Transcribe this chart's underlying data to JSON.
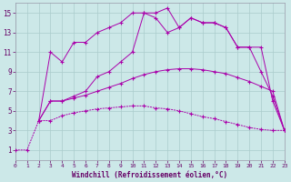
{
  "bg_color": "#cce8e8",
  "grid_color": "#aacccc",
  "line_color": "#aa00aa",
  "xlim": [
    0,
    23
  ],
  "ylim": [
    0,
    16
  ],
  "xticks": [
    0,
    1,
    2,
    3,
    4,
    5,
    6,
    7,
    8,
    9,
    10,
    11,
    12,
    13,
    14,
    15,
    16,
    17,
    18,
    19,
    20,
    21,
    22,
    23
  ],
  "yticks": [
    1,
    3,
    5,
    7,
    9,
    11,
    13,
    15
  ],
  "xlabel": "Windchill (Refroidissement éolien,°C)",
  "curve1_x": [
    0,
    1,
    2,
    3,
    4,
    5,
    6,
    7,
    8,
    9,
    10,
    11,
    12,
    13,
    14,
    15,
    16,
    17,
    18,
    19,
    20,
    21,
    22,
    23
  ],
  "curve1_y": [
    1,
    1,
    4,
    4,
    4.5,
    4.8,
    5.0,
    5.2,
    5.3,
    5.4,
    5.5,
    5.5,
    5.3,
    5.2,
    5.0,
    4.7,
    4.4,
    4.2,
    3.9,
    3.6,
    3.3,
    3.1,
    3.0,
    3.0
  ],
  "curve2_x": [
    2,
    3,
    4,
    5,
    6,
    7,
    8,
    9,
    10,
    11,
    12,
    13,
    14,
    15,
    16,
    17,
    18,
    19,
    20,
    21,
    22,
    23
  ],
  "curve2_y": [
    4,
    6,
    6,
    6.3,
    6.6,
    7.0,
    7.4,
    7.8,
    8.3,
    8.7,
    9.0,
    9.2,
    9.3,
    9.3,
    9.2,
    9.0,
    8.8,
    8.4,
    8.0,
    7.5,
    7.0,
    3.0
  ],
  "curve3_x": [
    2,
    3,
    4,
    5,
    6,
    7,
    8,
    9,
    10,
    11,
    12,
    13,
    14,
    15,
    16,
    17,
    18,
    19,
    20,
    21,
    22,
    23
  ],
  "curve3_y": [
    4,
    6,
    6,
    6.5,
    7.0,
    8.5,
    9.0,
    10.0,
    11.0,
    15.0,
    15.0,
    15.5,
    13.5,
    14.5,
    14.0,
    14.0,
    13.5,
    11.5,
    11.5,
    9.0,
    6.5,
    3.0
  ],
  "curve4_x": [
    2,
    3,
    4,
    5,
    6,
    7,
    8,
    9,
    10,
    11,
    12,
    13,
    14,
    15,
    16,
    17,
    18,
    19,
    20,
    21,
    22,
    23
  ],
  "curve4_y": [
    4,
    11,
    10,
    12,
    12,
    13,
    13.5,
    14,
    15,
    15,
    14.5,
    13.0,
    13.5,
    14.5,
    14.0,
    14.0,
    13.5,
    11.5,
    11.5,
    11.5,
    6.0,
    3.0
  ]
}
